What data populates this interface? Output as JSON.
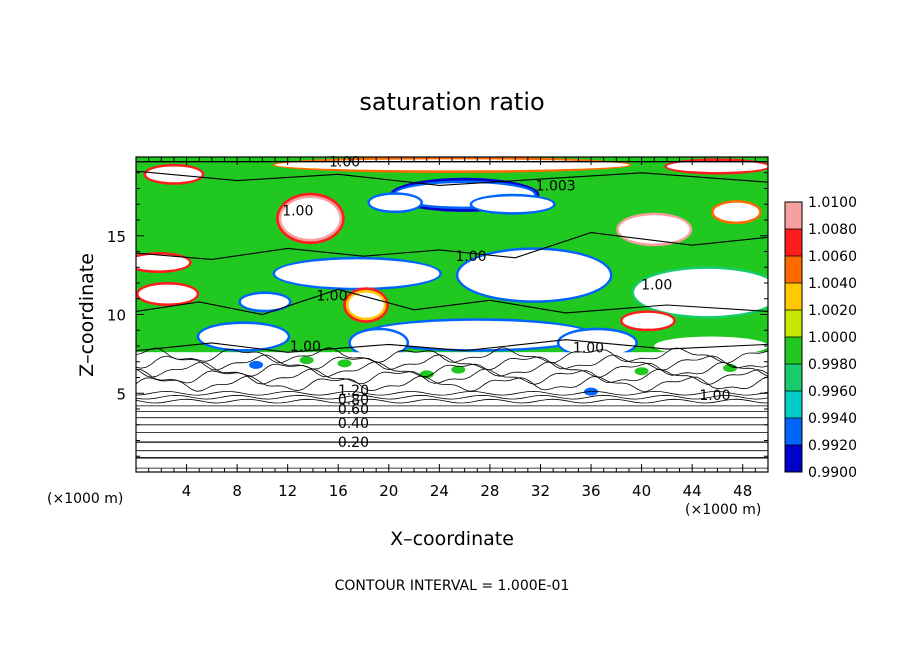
{
  "chart_data": {
    "type": "heatmap",
    "title": "saturation ratio",
    "xlabel": "X–coordinate",
    "ylabel": "Z–coordinate",
    "x_unit": "(×1000 m)",
    "y_unit": "(×1000 m)",
    "xlim": [
      0,
      50
    ],
    "ylim": [
      0,
      20
    ],
    "x_ticks": [
      4,
      8,
      12,
      16,
      20,
      24,
      28,
      32,
      36,
      40,
      44,
      48
    ],
    "y_ticks": [
      5,
      10,
      15
    ],
    "footnote": "CONTOUR INTERVAL = 1.000E-01",
    "colorbar": {
      "levels": [
        "1.0100",
        "1.0080",
        "1.0060",
        "1.0040",
        "1.0020",
        "1.0000",
        "0.9980",
        "0.9960",
        "0.9940",
        "0.9920",
        "0.9900"
      ],
      "colors": [
        "#f8a0a0",
        "#ff1c1c",
        "#ff6a00",
        "#ffc800",
        "#c8e600",
        "#20c820",
        "#18cc6e",
        "#00ccc8",
        "#0064ff",
        "#0000c8",
        "#6a00a0"
      ]
    },
    "contour_labels": [
      {
        "text": "1.00",
        "x": 16.5,
        "y": 19.7
      },
      {
        "text": "1.003",
        "x": 33.2,
        "y": 18.2
      },
      {
        "text": "1.00",
        "x": 12.8,
        "y": 16.6
      },
      {
        "text": "1.00",
        "x": 26.5,
        "y": 13.7
      },
      {
        "text": "1.00",
        "x": 41.2,
        "y": 11.9
      },
      {
        "text": "1.00",
        "x": 15.5,
        "y": 11.2
      },
      {
        "text": "1.00",
        "x": 13.4,
        "y": 8.0
      },
      {
        "text": "1.00",
        "x": 35.8,
        "y": 7.9
      },
      {
        "text": "1.00",
        "x": 45.8,
        "y": 4.9
      },
      {
        "text": "1.20",
        "x": 17.2,
        "y": 5.2
      },
      {
        "text": "0.80",
        "x": 17.2,
        "y": 4.6
      },
      {
        "text": "0.60",
        "x": 17.2,
        "y": 4.0
      },
      {
        "text": "0.40",
        "x": 17.2,
        "y": 3.1
      },
      {
        "text": "0.20",
        "x": 17.2,
        "y": 1.9
      }
    ],
    "grid": false
  }
}
